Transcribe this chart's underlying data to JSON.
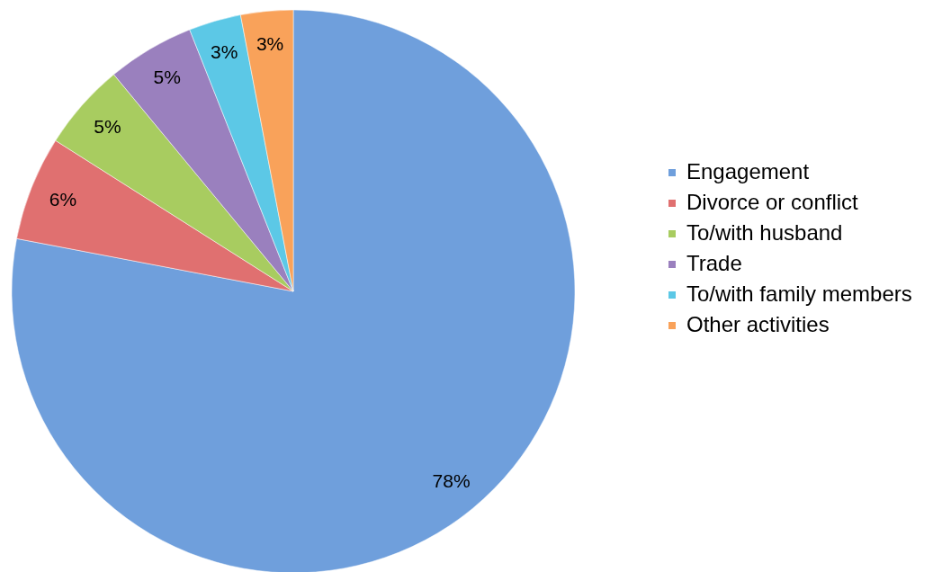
{
  "chart_data": {
    "type": "pie",
    "categories": [
      "Engagement",
      "Divorce or conflict",
      "To/with husband",
      "Trade",
      "To/with family members",
      "Other activities"
    ],
    "values": [
      78,
      6,
      5,
      5,
      3,
      3
    ],
    "colors": [
      "#6f9fdc",
      "#e07070",
      "#a8cc60",
      "#9a80be",
      "#5cc8e6",
      "#f9a25a"
    ],
    "value_labels": [
      "78%",
      "6%",
      "5%",
      "5%",
      "3%",
      "3%"
    ],
    "legend": "right"
  }
}
